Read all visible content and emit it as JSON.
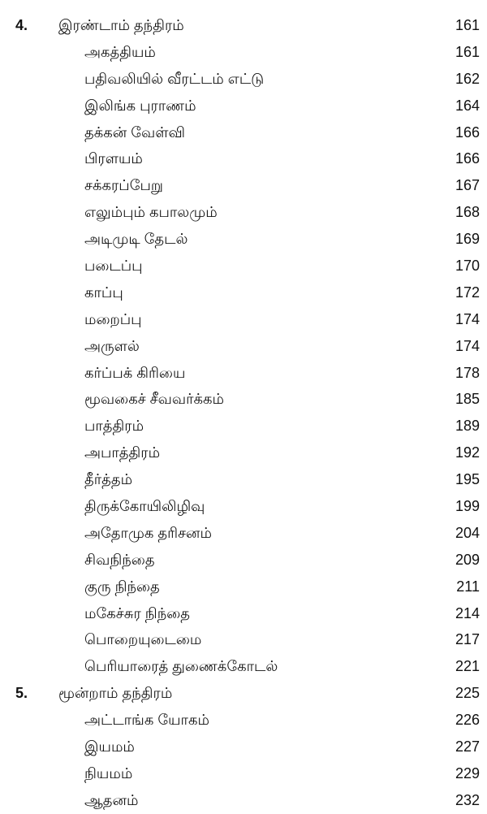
{
  "entries": [
    {
      "num": "4.",
      "title": "இரண்டாம் தந்திரம்",
      "page": "161",
      "level": 1
    },
    {
      "title": "அகத்தியம்",
      "page": "161",
      "level": 2
    },
    {
      "title": "பதிவலியில் வீரட்டம் எட்டு",
      "page": "162",
      "level": 2
    },
    {
      "title": "இலிங்க புராணம்",
      "page": "164",
      "level": 2
    },
    {
      "title": "தக்கன் வேள்வி",
      "page": "166",
      "level": 2
    },
    {
      "title": "பிரளயம்",
      "page": "166",
      "level": 2
    },
    {
      "title": "சக்கரப்பேறு",
      "page": "167",
      "level": 2
    },
    {
      "title": "எலும்பும் கபாலமும்",
      "page": "168",
      "level": 2
    },
    {
      "title": "அடிமுடி தேடல்",
      "page": "169",
      "level": 2
    },
    {
      "title": "படைப்பு",
      "page": "170",
      "level": 2
    },
    {
      "title": "காப்பு",
      "page": "172",
      "level": 2
    },
    {
      "title": "மறைப்பு",
      "page": "174",
      "level": 2
    },
    {
      "title": "அருளல்",
      "page": "174",
      "level": 2
    },
    {
      "title": "கர்ப்பக் கிரியை",
      "page": "178",
      "level": 2
    },
    {
      "title": "மூவகைச் சீவவர்க்கம்",
      "page": "185",
      "level": 2
    },
    {
      "title": "பாத்திரம்",
      "page": "189",
      "level": 2
    },
    {
      "title": "அபாத்திரம்",
      "page": "192",
      "level": 2
    },
    {
      "title": "தீர்த்தம்",
      "page": "195",
      "level": 2
    },
    {
      "title": "திருக்கோயிலிழிவு",
      "page": "199",
      "level": 2
    },
    {
      "title": "அதோமுக தரிசனம்",
      "page": "204",
      "level": 2
    },
    {
      "title": "சிவநிந்தை",
      "page": "209",
      "level": 2
    },
    {
      "title": "குரு நிந்தை",
      "page": "211",
      "level": 2
    },
    {
      "title": "மகேச்சுர நிந்தை",
      "page": "214",
      "level": 2
    },
    {
      "title": "பொறையுடைமை",
      "page": "217",
      "level": 2
    },
    {
      "title": "பெரியாரைத் துணைக்கோடல்",
      "page": "221",
      "level": 2
    },
    {
      "num": "5.",
      "title": "மூன்றாம் தந்திரம்",
      "page": "225",
      "level": 1
    },
    {
      "title": "அட்டாங்க யோகம்",
      "page": "226",
      "level": 2
    },
    {
      "title": "இயமம்",
      "page": "227",
      "level": 2
    },
    {
      "title": "நியமம்",
      "page": "229",
      "level": 2
    },
    {
      "title": "ஆதனம்",
      "page": "232",
      "level": 2
    }
  ]
}
